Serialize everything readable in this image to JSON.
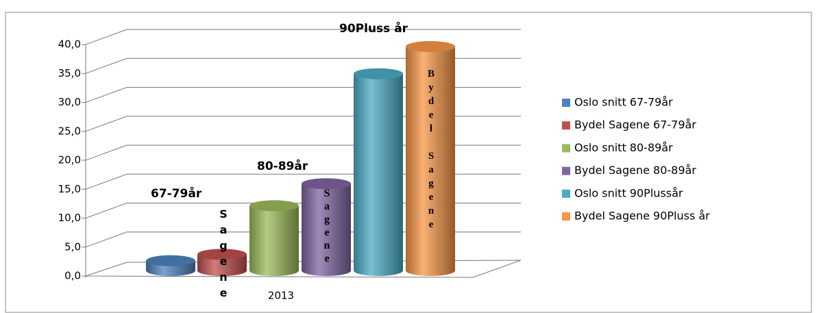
{
  "chart_data": {
    "type": "bar3d",
    "categories": [
      "2013"
    ],
    "series": [
      {
        "name": "Oslo snitt 67-79år",
        "color": "#4f81bd",
        "values": [
          1.7
        ]
      },
      {
        "name": "Bydel Sagene 67-79år",
        "color": "#c0504d",
        "values": [
          2.8
        ]
      },
      {
        "name": "Oslo snitt 80-89år",
        "color": "#9bbb59",
        "values": [
          11.2
        ]
      },
      {
        "name": "Bydel Sagene 80-89år",
        "color": "#8064a2",
        "values": [
          15.0
        ]
      },
      {
        "name": "Oslo snitt 90Plussår",
        "color": "#4bacc6",
        "values": [
          34.0
        ]
      },
      {
        "name": "Bydel Sagene 90Pluss år",
        "color": "#f79646",
        "values": [
          38.7
        ]
      }
    ],
    "ylim": [
      0,
      40
    ],
    "yticks": [
      {
        "value": 0,
        "label": "0,0"
      },
      {
        "value": 5,
        "label": "5,0"
      },
      {
        "value": 10,
        "label": "10,0"
      },
      {
        "value": 15,
        "label": "15,0"
      },
      {
        "value": 20,
        "label": "20,0"
      },
      {
        "value": 25,
        "label": "25,0"
      },
      {
        "value": 30,
        "label": "30,0"
      },
      {
        "value": 35,
        "label": "35,0"
      },
      {
        "value": 40,
        "label": "40,0"
      }
    ],
    "grid": true,
    "legend": "right",
    "annotations": [
      "67-79år",
      "80-89år",
      "90Pluss år"
    ],
    "bar_labels": [
      "Sagene",
      "Sagene",
      "Bydel Sagene"
    ]
  }
}
